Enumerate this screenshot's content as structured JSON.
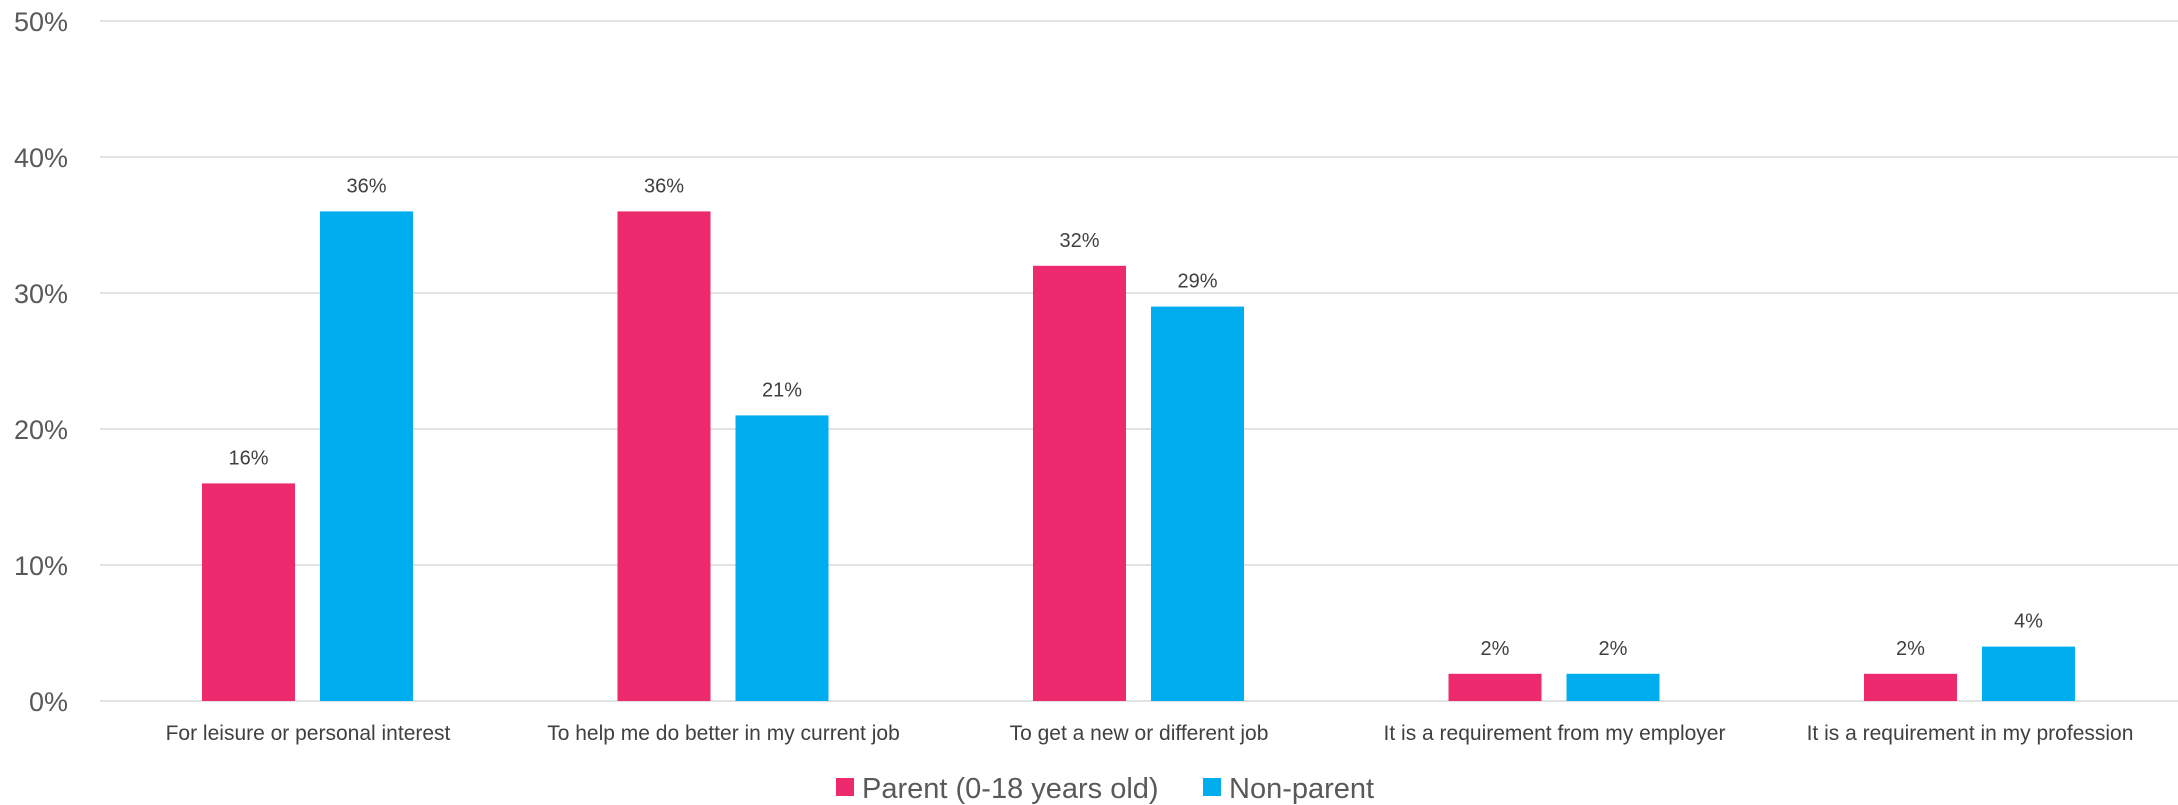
{
  "chart_data": {
    "type": "bar",
    "categories": [
      "For leisure or personal interest",
      "To help me do better in my current job",
      "To get a new or different job",
      "It is a requirement from my employer",
      "It is a requirement in my profession"
    ],
    "series": [
      {
        "name": "Parent (0-18 years old)",
        "color": "#ee2a6e",
        "values": [
          16,
          36,
          32,
          2,
          2
        ],
        "labels": [
          "16%",
          "36%",
          "32%",
          "2%",
          "2%"
        ]
      },
      {
        "name": "Non-parent",
        "color": "#00aeef",
        "values": [
          36,
          21,
          29,
          2,
          4
        ],
        "labels": [
          "36%",
          "21%",
          "29%",
          "2%",
          "4%"
        ]
      }
    ],
    "yticks": [
      0,
      10,
      20,
      30,
      40,
      50
    ],
    "ytick_labels": [
      "0%",
      "10%",
      "20%",
      "30%",
      "40%",
      "50%"
    ],
    "ylim": [
      0,
      50
    ],
    "grid": true,
    "legend_position": "bottom-center",
    "title": "",
    "xlabel": "",
    "ylabel": ""
  }
}
